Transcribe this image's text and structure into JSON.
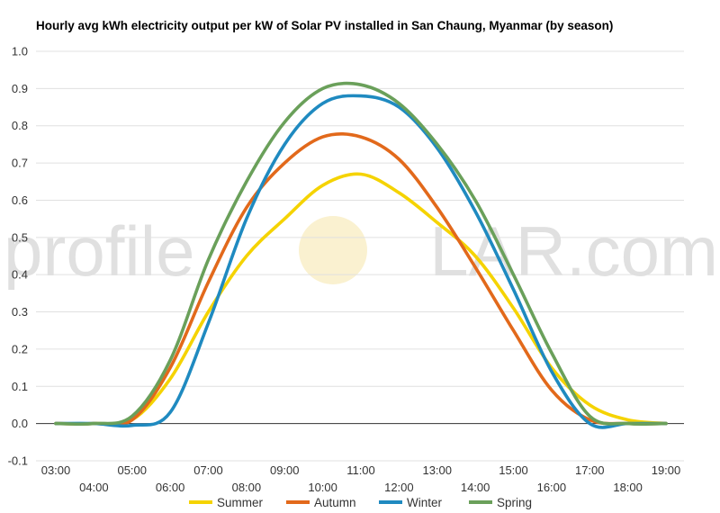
{
  "chart_data": {
    "type": "line",
    "title": "Hourly avg kWh electricity output per kW of Solar PV installed in San Chaung, Myanmar (by season)",
    "xlabel": "",
    "ylabel": "",
    "ylim": [
      -0.1,
      1.0
    ],
    "yticks": [
      "-0.1",
      "0.0",
      "0.1",
      "0.2",
      "0.3",
      "0.4",
      "0.5",
      "0.6",
      "0.7",
      "0.8",
      "0.9",
      "1.0"
    ],
    "x": [
      "03:00",
      "04:00",
      "05:00",
      "06:00",
      "07:00",
      "08:00",
      "09:00",
      "10:00",
      "11:00",
      "12:00",
      "13:00",
      "14:00",
      "15:00",
      "16:00",
      "17:00",
      "18:00",
      "19:00"
    ],
    "grid": true,
    "legend": "bottom",
    "watermark": {
      "left": "profile",
      "right": "LAR.com"
    },
    "series": [
      {
        "name": "Summer",
        "color": "#f5d300",
        "values": [
          0.0,
          0.0,
          0.01,
          0.12,
          0.3,
          0.45,
          0.55,
          0.64,
          0.67,
          0.62,
          0.54,
          0.45,
          0.31,
          0.15,
          0.05,
          0.01,
          0.0
        ]
      },
      {
        "name": "Autumn",
        "color": "#e2691b",
        "values": [
          0.0,
          0.0,
          0.01,
          0.15,
          0.38,
          0.58,
          0.7,
          0.77,
          0.77,
          0.71,
          0.58,
          0.42,
          0.25,
          0.09,
          0.01,
          0.0,
          0.0
        ]
      },
      {
        "name": "Winter",
        "color": "#1f8ac0",
        "values": [
          0.0,
          0.0,
          -0.005,
          0.03,
          0.27,
          0.55,
          0.75,
          0.86,
          0.88,
          0.85,
          0.74,
          0.57,
          0.36,
          0.14,
          0.0,
          0.0,
          0.0
        ]
      },
      {
        "name": "Spring",
        "color": "#6aa05a",
        "values": [
          0.0,
          0.0,
          0.02,
          0.17,
          0.44,
          0.65,
          0.81,
          0.9,
          0.91,
          0.86,
          0.75,
          0.6,
          0.4,
          0.19,
          0.02,
          0.0,
          0.0
        ]
      }
    ]
  }
}
